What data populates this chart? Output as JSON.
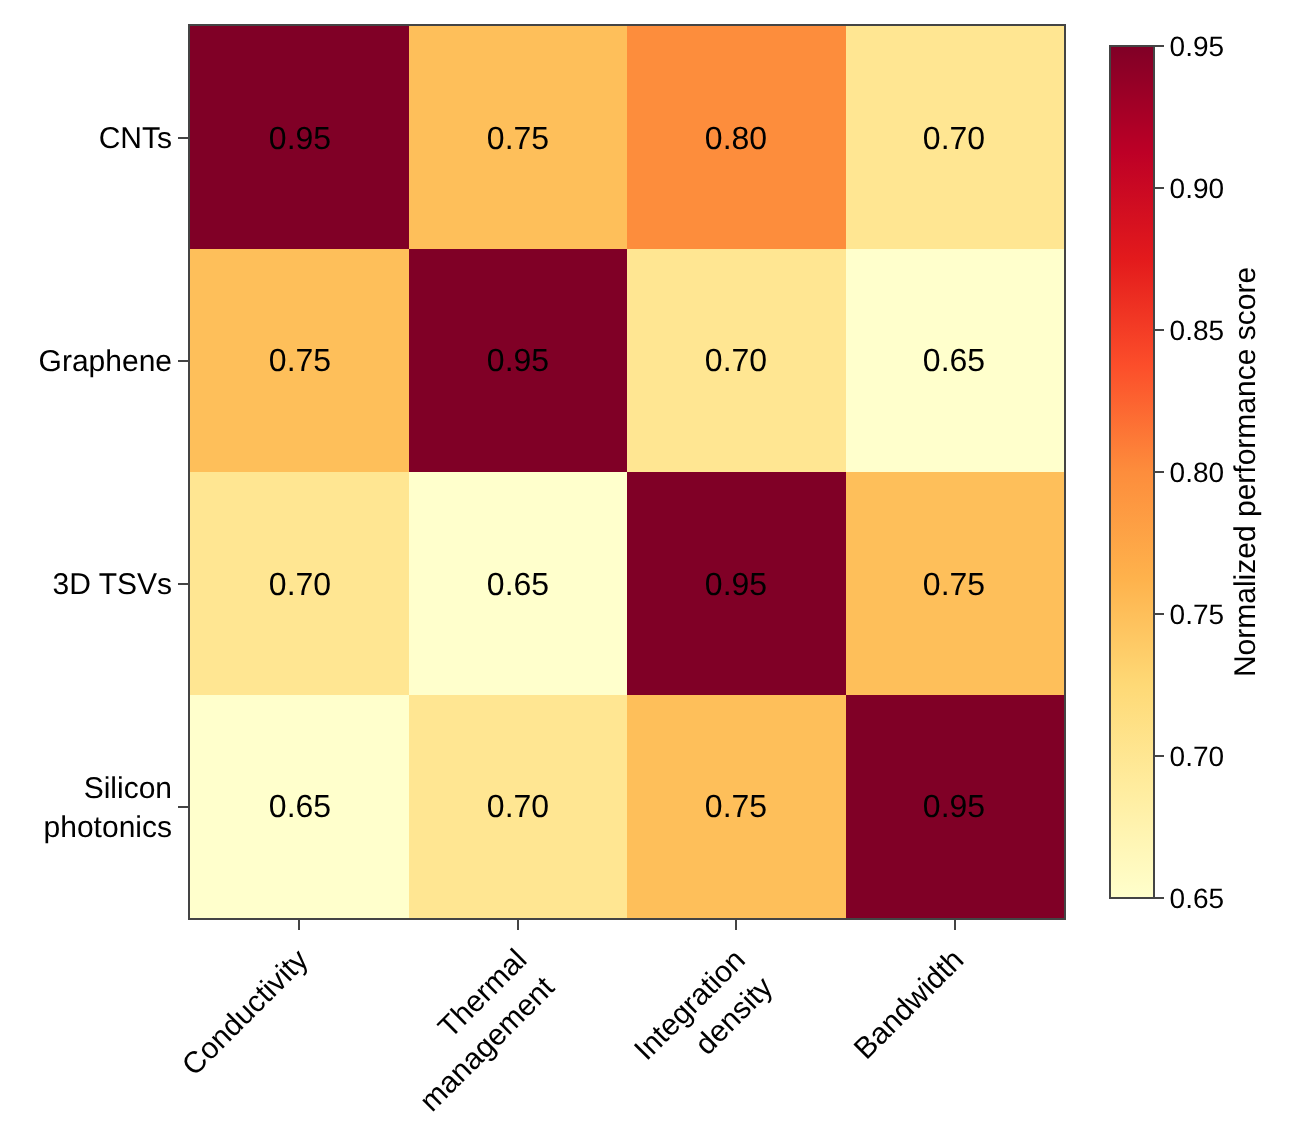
{
  "chart_data": {
    "type": "heatmap",
    "clabel": "Normalized performance score",
    "categories": [
      "Conductivity",
      "Thermal management",
      "Integration density",
      "Bandwidth"
    ],
    "y_categories": [
      "CNTs",
      "Graphene",
      "3D TSVs",
      "Silicon photonics"
    ],
    "cells": [
      [
        0.95,
        0.75,
        0.8,
        0.7
      ],
      [
        0.75,
        0.95,
        0.7,
        0.65
      ],
      [
        0.7,
        0.65,
        0.95,
        0.75
      ],
      [
        0.65,
        0.7,
        0.75,
        0.95
      ]
    ],
    "cell_labels": [
      [
        "0.95",
        "0.75",
        "0.80",
        "0.70"
      ],
      [
        "0.75",
        "0.95",
        "0.70",
        "0.65"
      ],
      [
        "0.70",
        "0.65",
        "0.95",
        "0.75"
      ],
      [
        "0.65",
        "0.70",
        "0.75",
        "0.95"
      ]
    ],
    "clim": [
      0.65,
      0.95
    ],
    "cticks": [
      0.65,
      {
        "value": 0.7,
        "label": "0.70"
      },
      0.75,
      {
        "value": 0.8,
        "label": "0.80"
      },
      0.85,
      {
        "value": 0.9,
        "label": "0.90"
      },
      0.95
    ]
  }
}
